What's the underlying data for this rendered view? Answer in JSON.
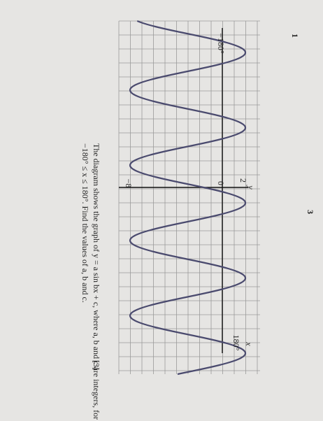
{
  "page_number": "3",
  "question": {
    "number": "1",
    "line1": "The diagram shows the graph of  y = a sin bx + c,  where a, b and c are integers, for",
    "line2": "−180° ≤ x ≤ 180°.  Find the values of a, b and c.",
    "marks": "[3]"
  },
  "graph": {
    "y_axis_label": "y",
    "x_axis_label": "x",
    "labels": {
      "top": "2",
      "origin": "0",
      "bottom": "−8",
      "x_min": "−180°",
      "x_max": "180°"
    }
  }
}
